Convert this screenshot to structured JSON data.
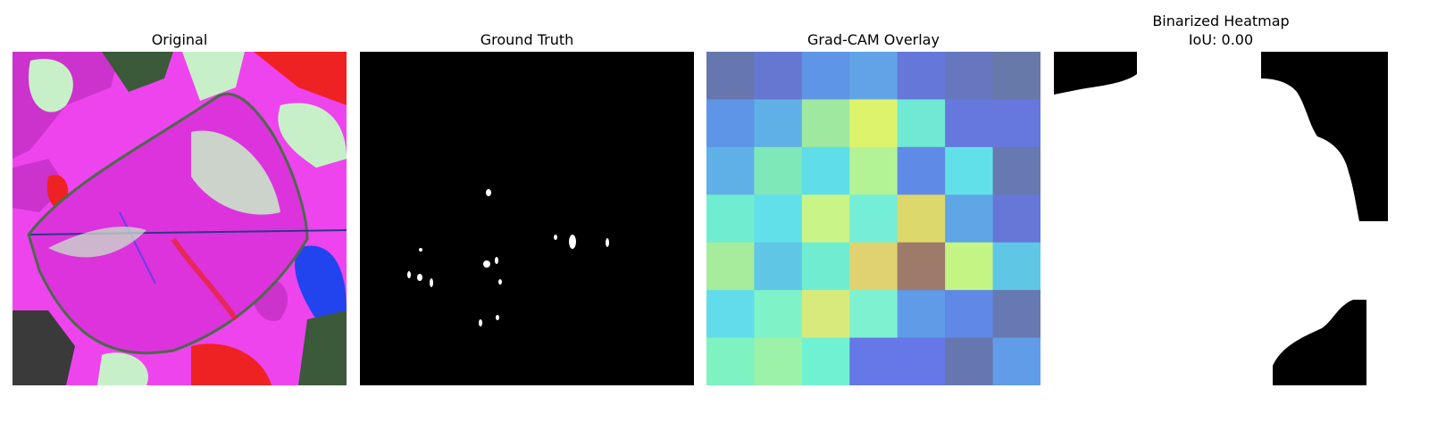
{
  "panels": {
    "original": {
      "title": "Original"
    },
    "ground_truth": {
      "title": "Ground Truth"
    },
    "gradcam": {
      "title": "Grad-CAM Overlay"
    },
    "binarized": {
      "title_line1": "Binarized Heatmap",
      "title_line2": "IoU: 0.00"
    }
  },
  "chart_data": {
    "type": "heatmap",
    "title": "Grad-CAM Overlay",
    "grid_rows": 7,
    "grid_cols": 7,
    "cell_colors": [
      [
        "#6677b0",
        "#6677d2",
        "#5f95e6",
        "#62a3e8",
        "#6577d8",
        "#6677c0",
        "#6679a8"
      ],
      [
        "#5f95e6",
        "#5fb0e6",
        "#9fe8a0",
        "#ddf36b",
        "#6fe8d4",
        "#6677dd",
        "#6677dd"
      ],
      [
        "#5fb0e6",
        "#7fe8b8",
        "#5fdde8",
        "#b4f296",
        "#5f8be6",
        "#62e0ea",
        "#6679b0"
      ],
      [
        "#70ecd0",
        "#62e0ea",
        "#c8f488",
        "#74eed6",
        "#ddd86b",
        "#5fa6e6",
        "#6677d8"
      ],
      [
        "#a6ec9c",
        "#5fc6e6",
        "#70ecd0",
        "#e0d270",
        "#9e7a6b",
        "#c4f484",
        "#5fc6e6"
      ],
      [
        "#62dcea",
        "#80f2c8",
        "#d8ea7c",
        "#7ef2d0",
        "#5f9be6",
        "#6088e6",
        "#6679b0"
      ],
      [
        "#7ef2c0",
        "#9cf2a8",
        "#70f2d2",
        "#6677e8",
        "#6677e8",
        "#6677b0",
        "#609ce8"
      ]
    ],
    "binarized_iou": "IoU: 0.00"
  }
}
